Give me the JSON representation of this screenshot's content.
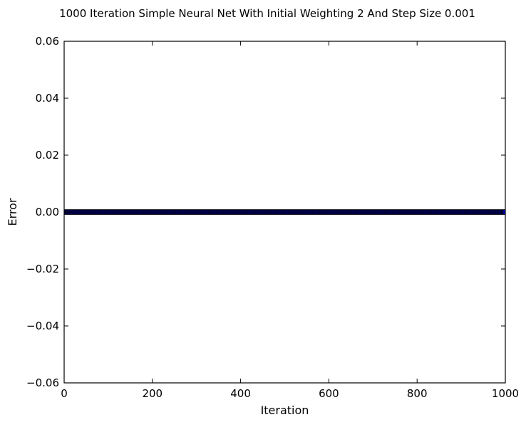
{
  "chart_data": {
    "type": "scatter",
    "title": "1000 Iteration Simple Neural Net With Initial Weighting 2 And Step Size 0.001",
    "xlabel": "Iteration",
    "ylabel": "Error",
    "xlim": [
      0,
      1000
    ],
    "ylim": [
      -0.06,
      0.06
    ],
    "x_ticks": [
      0,
      200,
      400,
      600,
      800,
      1000
    ],
    "x_tick_labels": [
      "0",
      "200",
      "400",
      "600",
      "800",
      "1000"
    ],
    "y_ticks": [
      -0.06,
      -0.04,
      -0.02,
      0.0,
      0.02,
      0.04,
      0.06
    ],
    "y_tick_labels": [
      "−0.06",
      "−0.04",
      "−0.02",
      "0.00",
      "0.02",
      "0.04",
      "0.06"
    ],
    "grid": false,
    "series": [
      {
        "x_start": 0,
        "x_end": 1000,
        "x_step": 1,
        "y_constant": 0.0,
        "color": "#0000ff",
        "edge_color": "#000000"
      }
    ]
  }
}
